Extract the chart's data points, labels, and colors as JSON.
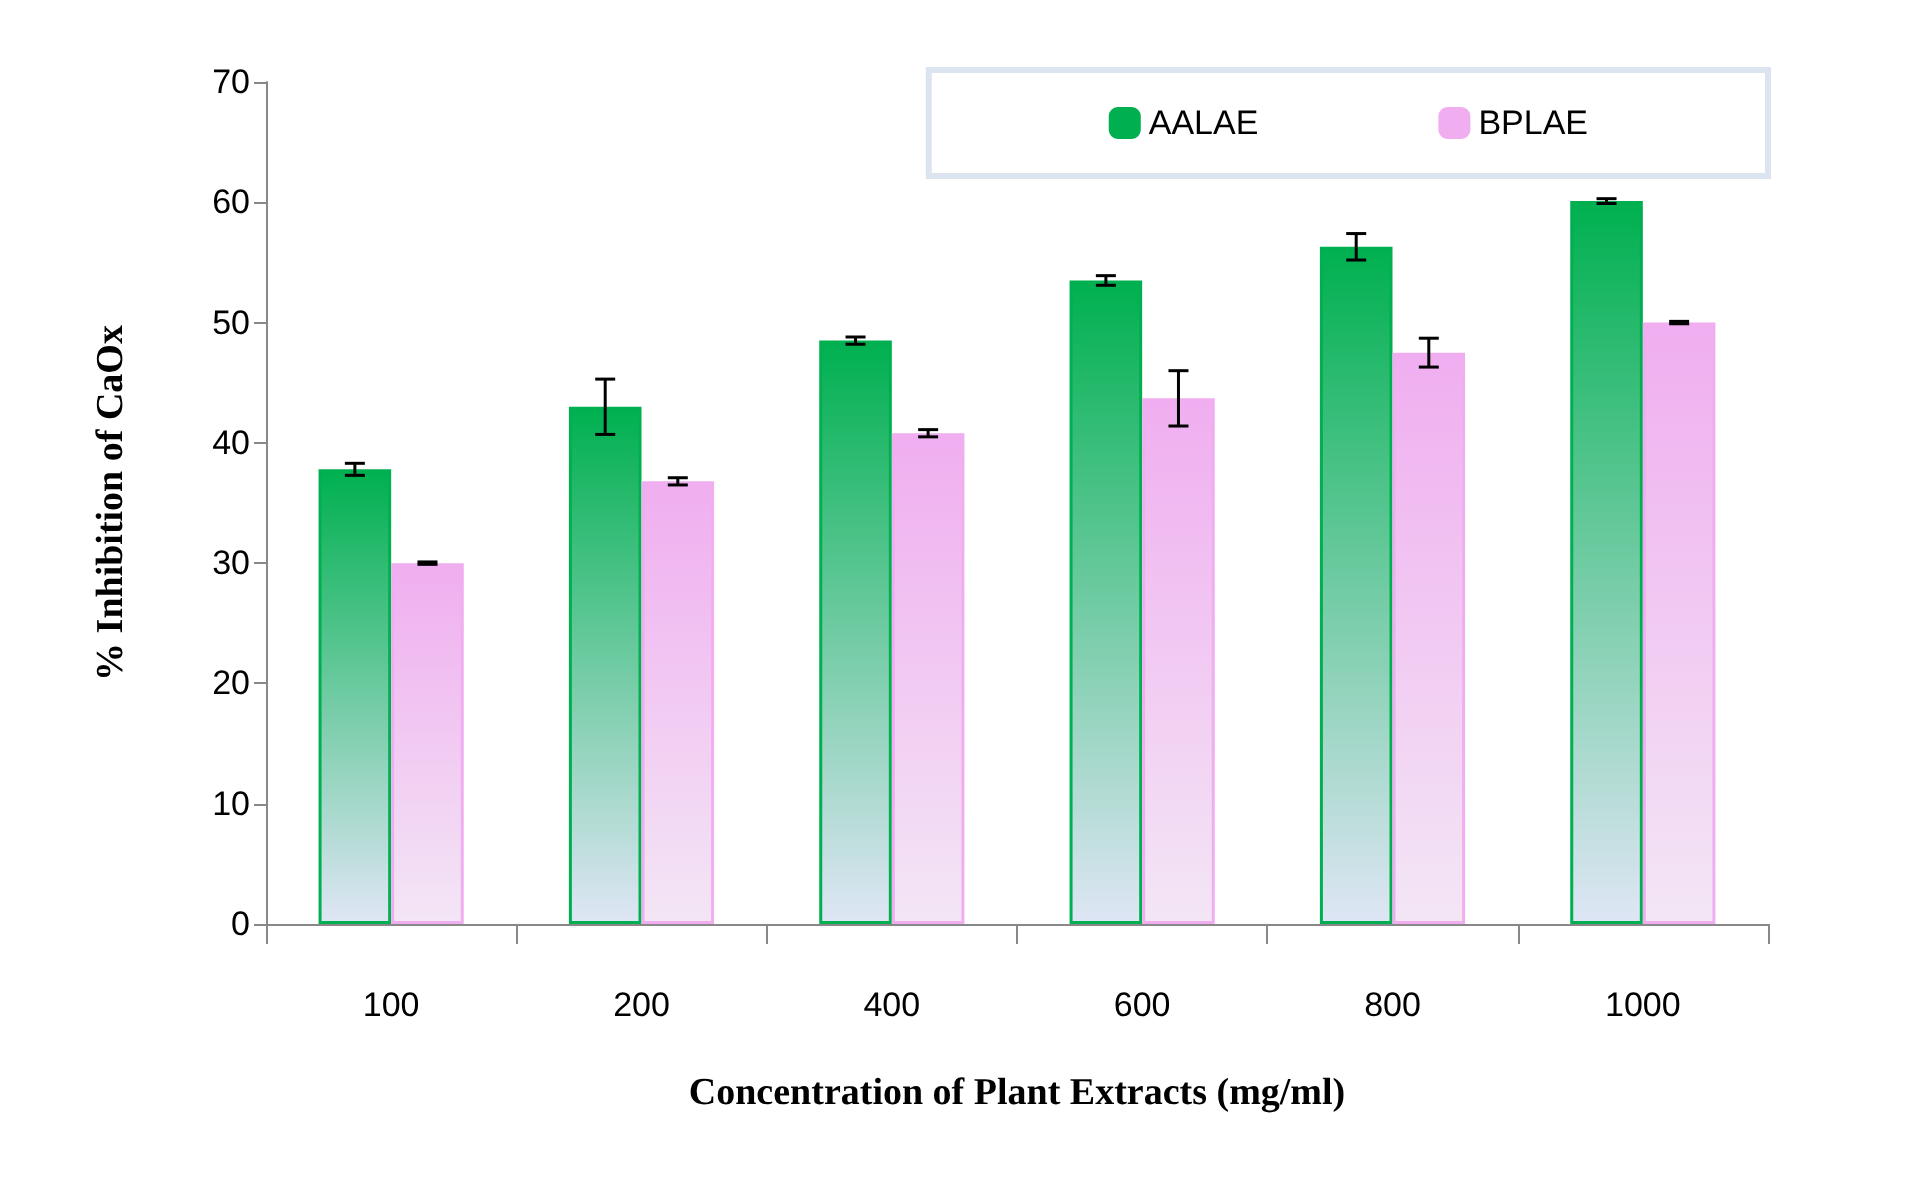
{
  "chart_data": {
    "type": "bar",
    "xlabel": "Concentration of Plant Extracts (mg/ml)",
    "ylabel": "% Inhibition of CaOx",
    "categories": [
      "100",
      "200",
      "400",
      "600",
      "800",
      "1000"
    ],
    "series": [
      {
        "name": "AALAE",
        "color": "#00b050",
        "values": [
          37.8,
          43,
          48.5,
          53.5,
          56.3,
          60.1
        ],
        "errors": [
          0.5,
          2.3,
          0.3,
          0.4,
          1.1,
          0.2
        ]
      },
      {
        "name": "BPLAE",
        "color": "#f0aef0",
        "values": [
          30,
          36.8,
          40.8,
          43.7,
          47.5,
          50
        ],
        "errors": [
          0.1,
          0.3,
          0.3,
          2.3,
          1.2,
          0.1
        ]
      }
    ],
    "ylim": [
      0,
      70
    ],
    "yticks": [
      0,
      10,
      20,
      30,
      40,
      50,
      60,
      70
    ],
    "grid": false,
    "legend": "top right"
  }
}
